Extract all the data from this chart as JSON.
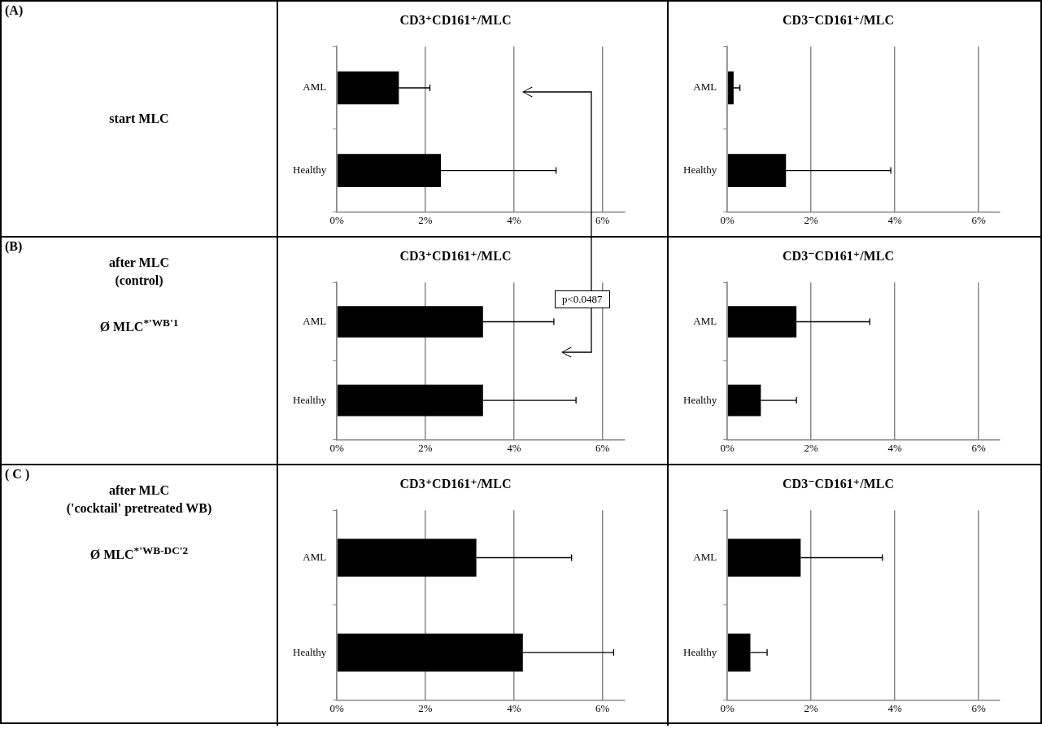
{
  "chart_data": [
    {
      "type": "other",
      "title": "(A)",
      "annotations": [
        "start MLC"
      ]
    },
    {
      "type": "bar",
      "orientation": "horizontal",
      "title": "CD3⁺CD161⁺/MLC",
      "categories": [
        "AML",
        "Healthy"
      ],
      "values": [
        1.4,
        2.35
      ],
      "errors": [
        [
          1.4,
          2.1
        ],
        [
          2.35,
          4.95
        ]
      ],
      "color": "#000000",
      "xlim": [
        0,
        6.5
      ],
      "xticks": [
        {
          "value": 0,
          "label": "0%"
        },
        {
          "value": 2,
          "label": "2%"
        },
        {
          "value": 4,
          "label": "4%"
        },
        {
          "value": 6,
          "label": "6%"
        }
      ],
      "grid": "x"
    },
    {
      "type": "bar",
      "orientation": "horizontal",
      "title": "CD3⁻CD161⁺/MLC",
      "categories": [
        "AML",
        "Healthy"
      ],
      "values": [
        0.15,
        1.4
      ],
      "errors": [
        [
          0.15,
          0.3
        ],
        [
          1.4,
          3.9
        ]
      ],
      "color": "#000000",
      "xlim": [
        0,
        6.5
      ],
      "xticks": [
        {
          "value": 0,
          "label": "0%"
        },
        {
          "value": 2,
          "label": "2%"
        },
        {
          "value": 4,
          "label": "4%"
        },
        {
          "value": 6,
          "label": "6%"
        }
      ],
      "grid": "x"
    },
    {
      "type": "other",
      "title": "(B)",
      "annotations": [
        "after MLC\n(control)",
        "Ø MLC$^{*'WB'1}$"
      ]
    },
    {
      "type": "bar",
      "orientation": "horizontal",
      "title": "CD3⁺CD161⁺/MLC",
      "categories": [
        "AML",
        "Healthy"
      ],
      "values": [
        3.3,
        3.3
      ],
      "errors": [
        [
          3.3,
          4.9
        ],
        [
          3.3,
          5.4
        ]
      ],
      "color": "#000000",
      "xlim": [
        0,
        6.5
      ],
      "xticks": [
        {
          "value": 0,
          "label": "0%"
        },
        {
          "value": 2,
          "label": "2%"
        },
        {
          "value": 4,
          "label": "4%"
        },
        {
          "value": 6,
          "label": "6%"
        }
      ],
      "grid": "x",
      "annotations": [
        "p<0.0487"
      ]
    },
    {
      "type": "bar",
      "orientation": "horizontal",
      "title": "CD3⁻CD161⁺/MLC",
      "categories": [
        "AML",
        "Healthy"
      ],
      "values": [
        1.65,
        0.8
      ],
      "errors": [
        [
          1.65,
          3.4
        ],
        [
          0.8,
          1.65
        ]
      ],
      "color": "#000000",
      "xlim": [
        0,
        6.5
      ],
      "xticks": [
        {
          "value": 0,
          "label": "0%"
        },
        {
          "value": 2,
          "label": "2%"
        },
        {
          "value": 4,
          "label": "4%"
        },
        {
          "value": 6,
          "label": "6%"
        }
      ],
      "grid": "x"
    },
    {
      "type": "other",
      "title": "( C )",
      "annotations": [
        "after MLC\n('cocktail' pretreated WB)",
        "Ø MLC$^{*'WB-DC'2}$"
      ]
    },
    {
      "type": "bar",
      "orientation": "horizontal",
      "title": "CD3⁺CD161⁺/MLC",
      "categories": [
        "AML",
        "Healthy"
      ],
      "values": [
        3.15,
        4.2
      ],
      "errors": [
        [
          3.15,
          5.3
        ],
        [
          4.2,
          6.25
        ]
      ],
      "color": "#000000",
      "xlim": [
        0,
        6.5
      ],
      "xticks": [
        {
          "value": 0,
          "label": "0%"
        },
        {
          "value": 2,
          "label": "2%"
        },
        {
          "value": 4,
          "label": "4%"
        },
        {
          "value": 6,
          "label": "6%"
        }
      ],
      "grid": "x"
    },
    {
      "type": "bar",
      "orientation": "horizontal",
      "title": "CD3⁻CD161⁺/MLC",
      "categories": [
        "AML",
        "Healthy"
      ],
      "values": [
        1.75,
        0.55
      ],
      "errors": [
        [
          1.75,
          3.7
        ],
        [
          0.55,
          0.95
        ]
      ],
      "color": "#000000",
      "xlim": [
        0,
        6.5
      ],
      "xticks": [
        {
          "value": 0,
          "label": "0%"
        },
        {
          "value": 2,
          "label": "2%"
        },
        {
          "value": 4,
          "label": "4%"
        },
        {
          "value": 6,
          "label": "6%"
        }
      ],
      "grid": "x"
    }
  ]
}
